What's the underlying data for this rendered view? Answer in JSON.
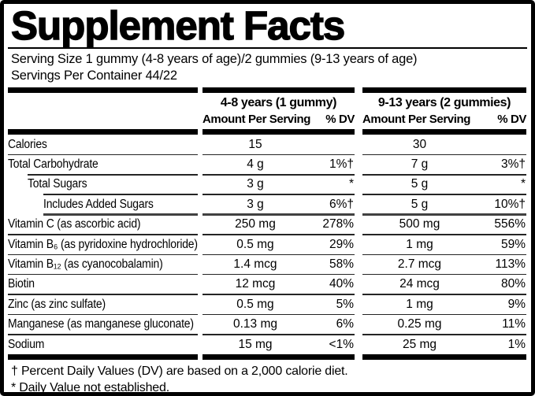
{
  "title": "Supplement Facts",
  "serving": {
    "line1": "Serving Size 1 gummy (4-8 years of age)/2 gummies (9-13 years of age)",
    "line2": "Servings Per Container 44/22"
  },
  "table": {
    "groups": [
      {
        "age_label": "4-8 years (1 gummy)",
        "amount_label": "Amount Per Serving",
        "dv_label": "% DV"
      },
      {
        "age_label": "9-13 years (2 gummies)",
        "amount_label": "Amount Per Serving",
        "dv_label": "% DV"
      }
    ],
    "rows": [
      {
        "name": "Calories",
        "col1": {
          "amount": "15",
          "dv": ""
        },
        "col2": {
          "amount": "30",
          "dv": ""
        }
      },
      {
        "name": "Total Carbohydrate",
        "col1": {
          "amount": "4 g",
          "dv": "1%†"
        },
        "col2": {
          "amount": "7 g",
          "dv": "3%†"
        }
      },
      {
        "name": "Total Sugars",
        "col1": {
          "amount": "3 g",
          "dv": "*"
        },
        "col2": {
          "amount": "5 g",
          "dv": "*"
        }
      },
      {
        "name": "Includes Added Sugars",
        "col1": {
          "amount": "3 g",
          "dv": "6%†"
        },
        "col2": {
          "amount": "5 g",
          "dv": "10%†"
        }
      },
      {
        "name": "Vitamin C (as ascorbic acid)",
        "col1": {
          "amount": "250 mg",
          "dv": "278%"
        },
        "col2": {
          "amount": "500 mg",
          "dv": "556%"
        }
      },
      {
        "name": "Vitamin B₆ (as pyridoxine hydrochloride)",
        "col1": {
          "amount": "0.5 mg",
          "dv": "29%"
        },
        "col2": {
          "amount": "1 mg",
          "dv": "59%"
        }
      },
      {
        "name": "Vitamin B₁₂ (as cyanocobalamin)",
        "col1": {
          "amount": "1.4 mcg",
          "dv": "58%"
        },
        "col2": {
          "amount": "2.7 mcg",
          "dv": "113%"
        }
      },
      {
        "name": "Biotin",
        "col1": {
          "amount": "12 mcg",
          "dv": "40%"
        },
        "col2": {
          "amount": "24 mcg",
          "dv": "80%"
        }
      },
      {
        "name": "Zinc (as zinc sulfate)",
        "col1": {
          "amount": "0.5 mg",
          "dv": "5%"
        },
        "col2": {
          "amount": "1 mg",
          "dv": "9%"
        }
      },
      {
        "name": "Manganese (as manganese gluconate)",
        "col1": {
          "amount": "0.13 mg",
          "dv": "6%"
        },
        "col2": {
          "amount": "0.25 mg",
          "dv": "11%"
        }
      },
      {
        "name": "Sodium",
        "col1": {
          "amount": "15 mg",
          "dv": "<1%"
        },
        "col2": {
          "amount": "25 mg",
          "dv": "1%"
        }
      }
    ]
  },
  "footnotes": [
    "† Percent Daily Values (DV) are based on a 2,000 calorie diet.",
    "* Daily Value not established."
  ],
  "colors": {
    "ink": "#000000",
    "thin_rule": "#242424",
    "medium_rule": "#414141",
    "background": "#ffffff"
  }
}
